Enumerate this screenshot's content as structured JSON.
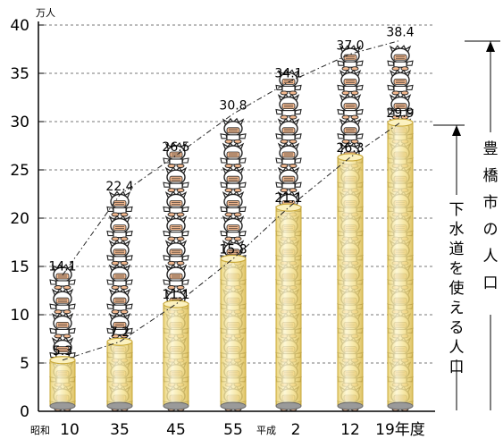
{
  "chart_data": {
    "type": "bar",
    "unit_label": "万人",
    "categories": [
      {
        "era": "昭和",
        "year": "10"
      },
      {
        "era": "",
        "year": "35"
      },
      {
        "era": "",
        "year": "45"
      },
      {
        "era": "",
        "year": "55"
      },
      {
        "era": "平成",
        "year": "2"
      },
      {
        "era": "",
        "year": "12"
      },
      {
        "era": "",
        "year": "19年度"
      }
    ],
    "series": [
      {
        "name": "下水道を使える人口",
        "values": [
          5.3,
          7.2,
          11.1,
          15.8,
          21.1,
          26.3,
          29.9
        ],
        "style": "cylinder-bar"
      },
      {
        "name": "豊橋市の人口",
        "values": [
          14.1,
          22.4,
          26.5,
          30.8,
          34.1,
          37.0,
          38.4
        ],
        "style": "stacked-figures-dashdot-line"
      }
    ],
    "ylim": [
      0,
      40
    ],
    "yticks": [
      0,
      5,
      10,
      15,
      20,
      25,
      30,
      35,
      40
    ],
    "grid": "dashed-horizontal",
    "colors": {
      "cylinder_fill": "#f7e9a6",
      "cylinder_edge": "#c9a93a",
      "figure_face": "#f3b98f",
      "figure_outline": "#222222"
    }
  }
}
